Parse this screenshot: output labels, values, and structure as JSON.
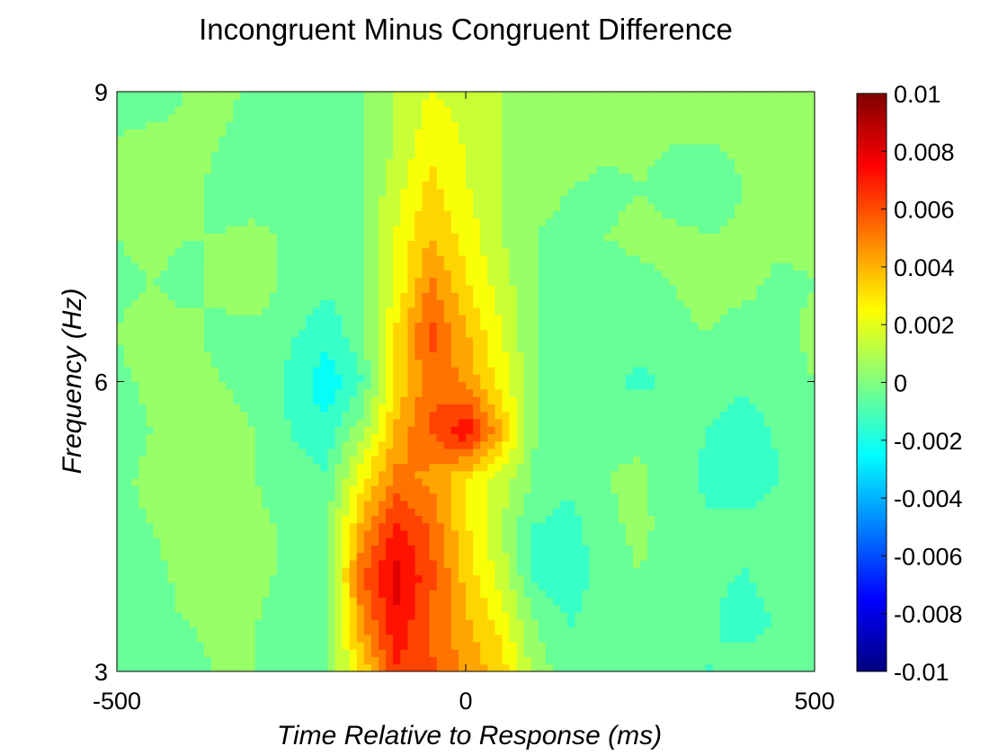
{
  "chart_data": {
    "type": "heatmap",
    "title": "Incongruent Minus Congruent Difference",
    "xlabel": "Time Relative to Response (ms)",
    "ylabel": "Frequency (Hz)",
    "xlim": [
      -500,
      500
    ],
    "ylim": [
      3,
      9
    ],
    "xticks": [
      -500,
      0,
      500
    ],
    "yticks": [
      3,
      6,
      9
    ],
    "colorbar": {
      "colormap": "jet",
      "clim": [
        -0.01,
        0.01
      ],
      "ticks": [
        "0.01",
        "0.008",
        "0.006",
        "0.004",
        "0.002",
        "0",
        "-0.002",
        "-0.004",
        "-0.006",
        "-0.008",
        "-0.01"
      ]
    },
    "x": [
      -500,
      -450,
      -400,
      -350,
      -300,
      -250,
      -200,
      -150,
      -100,
      -50,
      0,
      50,
      100,
      150,
      200,
      250,
      300,
      350,
      400,
      450,
      500
    ],
    "y": [
      3,
      3.5,
      4,
      4.5,
      5,
      5.5,
      6,
      6.5,
      7,
      7.5,
      8,
      8.5,
      9
    ],
    "z": [
      [
        -0.0002,
        0.0,
        -0.0004,
        0.0002,
        0.0,
        -0.0004,
        -0.0002,
        0.003,
        0.0065,
        0.006,
        0.0045,
        0.0035,
        0.0005,
        -0.0005,
        -0.0002,
        0.0,
        -0.0006,
        -0.001,
        -0.0004,
        0.0,
        -0.0002
      ],
      [
        -0.0004,
        -0.0002,
        0.0,
        0.0002,
        0.0,
        -0.0004,
        -0.0004,
        0.0045,
        0.0075,
        0.0055,
        0.004,
        0.0025,
        0.0,
        -0.001,
        -0.0004,
        -0.0002,
        -0.0006,
        -0.0008,
        -0.0014,
        -0.0008,
        -0.0004
      ],
      [
        -0.0006,
        -0.0002,
        0.0002,
        0.0004,
        0.0002,
        -0.0002,
        -0.0004,
        0.0055,
        0.008,
        0.006,
        0.0035,
        0.0015,
        -0.0012,
        -0.0016,
        -0.0004,
        0.0,
        -0.0004,
        -0.0008,
        -0.001,
        -0.0006,
        0.0
      ],
      [
        -0.0002,
        0.0,
        0.0004,
        0.0006,
        0.0002,
        -0.0002,
        -0.0002,
        0.004,
        0.007,
        0.0055,
        0.003,
        0.001,
        -0.001,
        -0.0014,
        -0.0002,
        0.0002,
        -0.0004,
        -0.0008,
        -0.0006,
        -0.0004,
        -0.0002
      ],
      [
        -0.0002,
        0.0002,
        0.0004,
        0.0002,
        0.0,
        -0.0004,
        -0.0008,
        0.0025,
        0.005,
        0.0045,
        0.003,
        0.0015,
        -0.0002,
        -0.0006,
        0.0,
        0.0002,
        -0.0006,
        -0.0012,
        -0.0016,
        -0.001,
        -0.0004
      ],
      [
        -0.0004,
        0.0,
        0.0004,
        0.0002,
        0.0,
        -0.001,
        -0.0016,
        0.0005,
        0.004,
        0.0058,
        0.0075,
        0.004,
        0.0,
        -0.0004,
        -0.0004,
        -0.0002,
        -0.0004,
        -0.001,
        -0.0014,
        -0.0008,
        -0.0002
      ],
      [
        -0.0002,
        0.0002,
        0.0002,
        0.0,
        -0.0002,
        -0.0012,
        -0.0026,
        -0.001,
        0.003,
        0.0055,
        0.0045,
        0.0025,
        0.0,
        -0.0006,
        -0.0006,
        -0.0012,
        -0.0008,
        -0.0004,
        -0.0008,
        -0.0004,
        0.0
      ],
      [
        0.0,
        0.0004,
        0.0002,
        -0.0002,
        -0.0002,
        -0.0008,
        -0.0016,
        -0.0004,
        0.003,
        0.006,
        0.004,
        0.002,
        0.0,
        -0.0004,
        -0.0004,
        -0.0006,
        -0.0002,
        0.0,
        -0.0004,
        -0.0002,
        0.0002
      ],
      [
        -0.0002,
        0.0,
        -0.0002,
        0.0002,
        0.0004,
        -0.0002,
        -0.0008,
        -0.0002,
        0.002,
        0.005,
        0.003,
        0.0015,
        0.0,
        -0.0002,
        -0.0004,
        -0.0002,
        0.0,
        0.0004,
        0.0002,
        -0.0002,
        0.0
      ],
      [
        0.0,
        0.0002,
        0.0,
        0.0,
        0.0002,
        -0.0002,
        -0.0006,
        0.0,
        0.002,
        0.0038,
        0.0025,
        0.001,
        0.0,
        -0.0002,
        0.0,
        0.0002,
        0.0002,
        0.0,
        0.0002,
        0.0002,
        0.0002
      ],
      [
        0.0002,
        0.0004,
        0.0002,
        -0.0002,
        -0.0004,
        -0.0004,
        -0.0004,
        0.0,
        0.0015,
        0.0032,
        0.002,
        0.001,
        0.0002,
        0.0,
        -0.0002,
        0.0,
        -0.0004,
        -0.0004,
        0.0,
        0.0002,
        0.0004
      ],
      [
        0.0,
        0.0002,
        0.0002,
        0.0,
        -0.0004,
        -0.0006,
        -0.0004,
        0.0,
        0.001,
        0.0025,
        0.0018,
        0.001,
        0.0004,
        0.0004,
        0.0002,
        0.0002,
        0.0,
        0.0,
        0.0002,
        0.0004,
        0.0006
      ],
      [
        -0.0002,
        -0.0004,
        0.0,
        0.0002,
        -0.0002,
        -0.0004,
        -0.0002,
        0.0,
        0.001,
        0.002,
        0.0015,
        0.001,
        0.0004,
        0.0004,
        0.0006,
        0.0008,
        0.0004,
        0.0002,
        0.0002,
        0.0004,
        0.0006
      ]
    ]
  }
}
